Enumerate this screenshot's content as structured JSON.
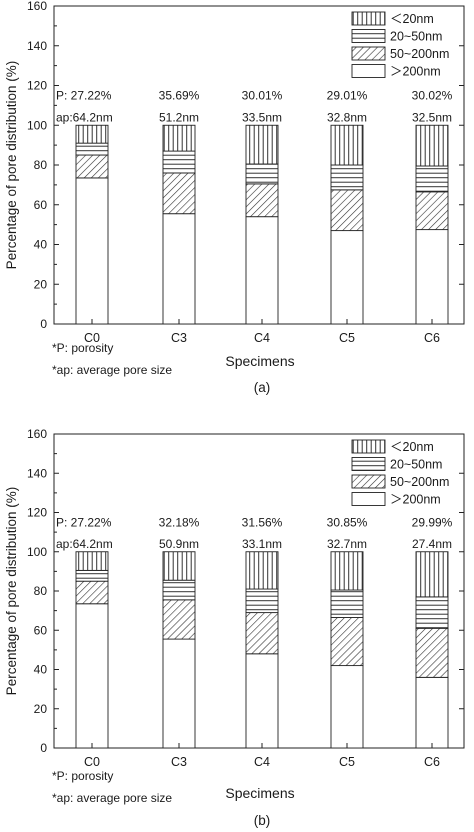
{
  "chart_data": [
    {
      "type": "bar",
      "stacked": true,
      "panel_label": "(a)",
      "xlabel": "Specimens",
      "ylabel": "Percentage of pore distribution (%)",
      "ylim": [
        0,
        160
      ],
      "yticks": [
        "0",
        "20",
        "40",
        "60",
        "80",
        "100",
        "120",
        "140",
        "160"
      ],
      "categories": [
        "C0",
        "C3",
        "C4",
        "C5",
        "C6"
      ],
      "series": [
        {
          "name": "＞200nm",
          "pattern": "blank",
          "values": [
            73.5,
            55.5,
            54,
            47,
            47.5
          ]
        },
        {
          "name": "50~200nm",
          "pattern": "diagonal-hatch",
          "values": [
            11.5,
            20.5,
            16.5,
            20.5,
            19
          ]
        },
        {
          "name": "20~50nm",
          "pattern": "horizontal-lines",
          "values": [
            6,
            11,
            10,
            12.5,
            13
          ]
        },
        {
          "name": "＜20nm",
          "pattern": "vertical-lines",
          "values": [
            9,
            13,
            19.5,
            20,
            20.5
          ]
        }
      ],
      "porosity_labels": [
        "P: 27.22%",
        "35.69%",
        "30.01%",
        "29.01%",
        "30.02%"
      ],
      "pore_size_labels": [
        "ap:64.2nm",
        "51.2nm",
        "33.5nm",
        "32.8nm",
        "32.5nm"
      ],
      "legend_position": "top-right",
      "notes": [
        "*P: porosity",
        "*ap: average pore size"
      ]
    },
    {
      "type": "bar",
      "stacked": true,
      "panel_label": "(b)",
      "xlabel": "Specimens",
      "ylabel": "Percentage of pore distribution (%)",
      "ylim": [
        0,
        160
      ],
      "yticks": [
        "0",
        "20",
        "40",
        "60",
        "80",
        "100",
        "120",
        "140",
        "160"
      ],
      "categories": [
        "C0",
        "C3",
        "C4",
        "C5",
        "C6"
      ],
      "series": [
        {
          "name": "＞200nm",
          "pattern": "blank",
          "values": [
            73.5,
            55.5,
            48,
            42,
            36
          ]
        },
        {
          "name": "50~200nm",
          "pattern": "diagonal-hatch",
          "values": [
            11.5,
            20,
            21,
            24.5,
            25
          ]
        },
        {
          "name": "20~50nm",
          "pattern": "horizontal-lines",
          "values": [
            5.5,
            10,
            12,
            14,
            16
          ]
        },
        {
          "name": "＜20nm",
          "pattern": "vertical-lines",
          "values": [
            9.5,
            14.5,
            19,
            19.5,
            23
          ]
        }
      ],
      "porosity_labels": [
        "P: 27.22%",
        "32.18%",
        "31.56%",
        "30.85%",
        "29.99%"
      ],
      "pore_size_labels": [
        "ap:64.2nm",
        "50.9nm",
        "33.1nm",
        "32.7nm",
        "27.4nm"
      ],
      "legend_position": "top-right",
      "notes": [
        "*P: porosity",
        "*ap: average pore size"
      ]
    }
  ]
}
